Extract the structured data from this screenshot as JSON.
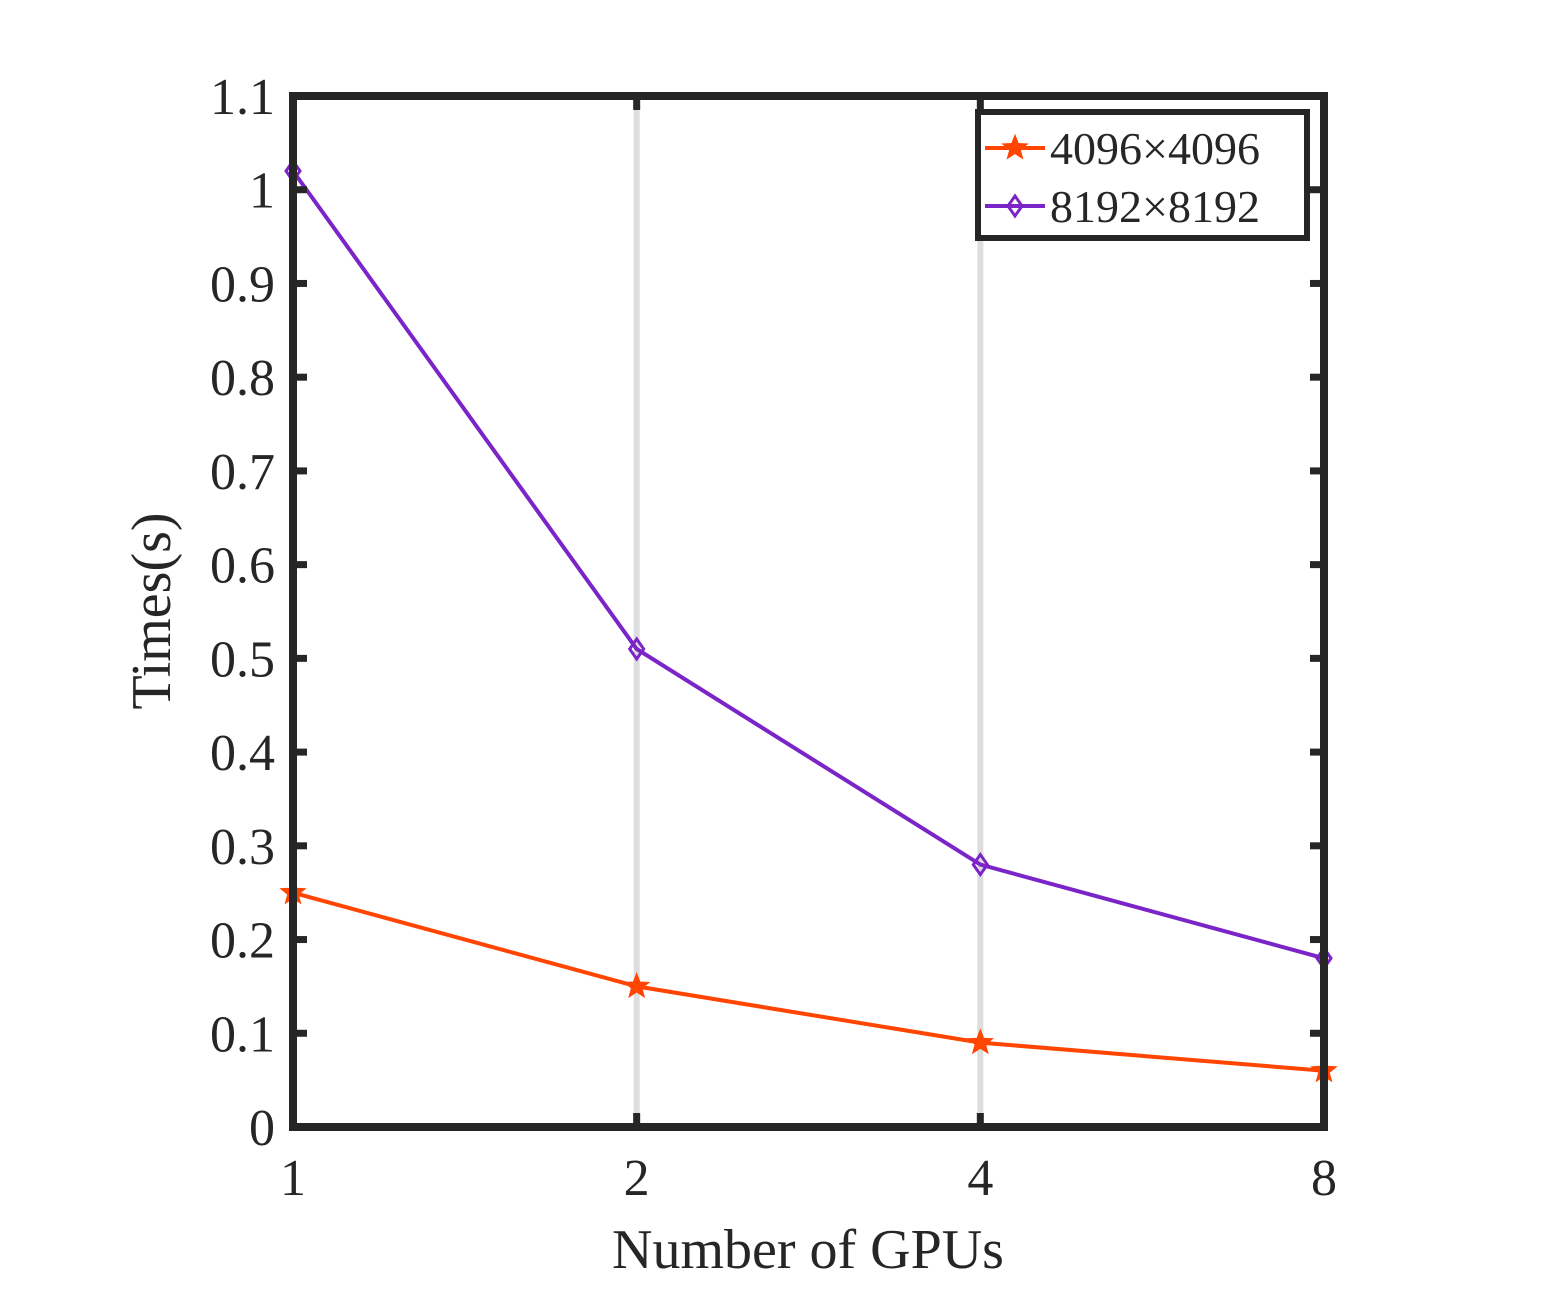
{
  "chart_data": {
    "type": "line",
    "title": "",
    "xlabel": "Number of GPUs",
    "ylabel": "Times(s)",
    "x": [
      1,
      2,
      4,
      8
    ],
    "xticks": [
      "1",
      "2",
      "4",
      "8"
    ],
    "xlim": [
      1,
      8
    ],
    "x_scale": "log2",
    "ylim": [
      0,
      1.1
    ],
    "yticks": [
      "0",
      "0.1",
      "0.2",
      "0.3",
      "0.4",
      "0.5",
      "0.6",
      "0.7",
      "0.8",
      "0.9",
      "1",
      "1.1"
    ],
    "grid": "vertical lines at x ticks",
    "legend_position": "top-right",
    "series": [
      {
        "name": "4096×4096",
        "values": [
          0.25,
          0.15,
          0.09,
          0.06
        ],
        "color": "#ff4500",
        "marker": "star"
      },
      {
        "name": "8192×8192",
        "values": [
          1.02,
          0.51,
          0.28,
          0.18
        ],
        "color": "#7b24c8",
        "marker": "diamond"
      }
    ],
    "colors": {
      "axis": "#262626",
      "grid": "#dddddd"
    }
  }
}
